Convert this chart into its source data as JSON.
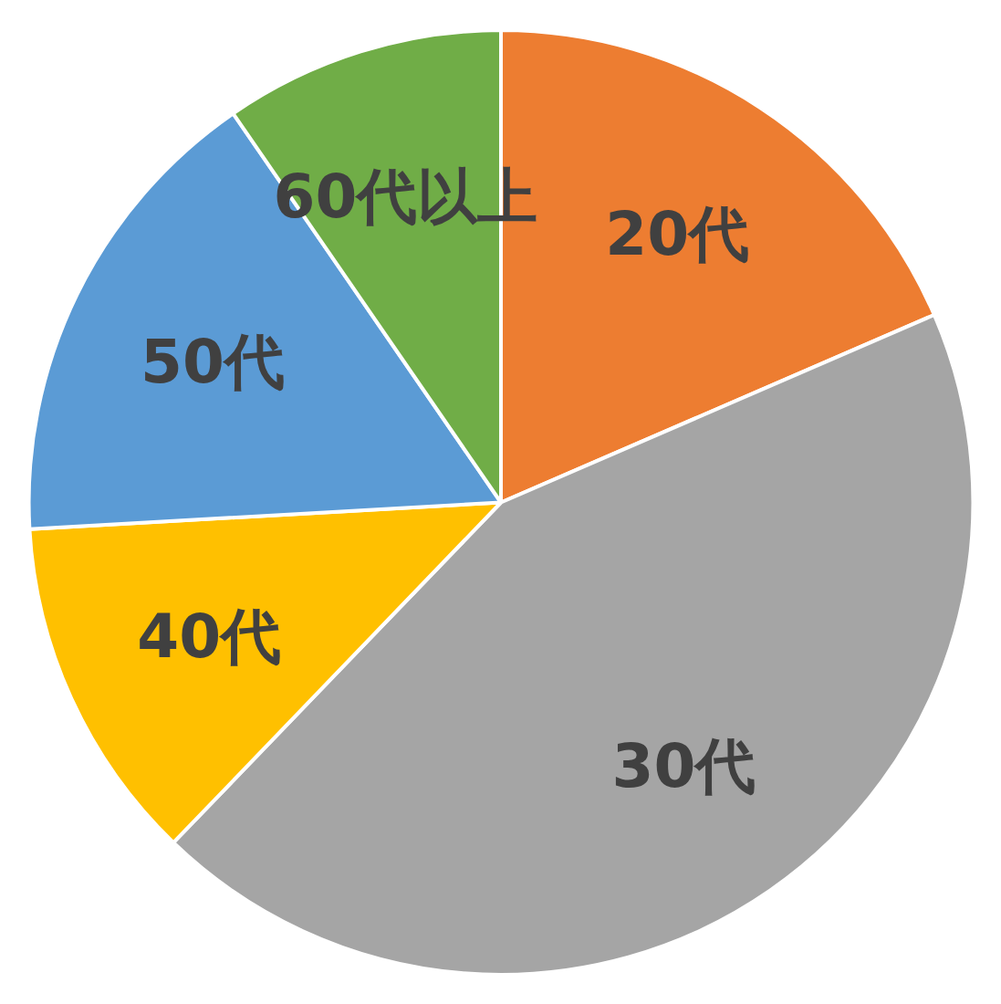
{
  "chart_data": {
    "type": "pie",
    "categories": [
      "20代",
      "30代",
      "40代",
      "50代",
      "60代以上"
    ],
    "values": [
      18.5,
      43.7,
      11.9,
      16.3,
      9.6
    ],
    "colors": [
      "#ed7d31",
      "#a5a5a5",
      "#ffc000",
      "#5b9bd5",
      "#70ad47"
    ]
  }
}
